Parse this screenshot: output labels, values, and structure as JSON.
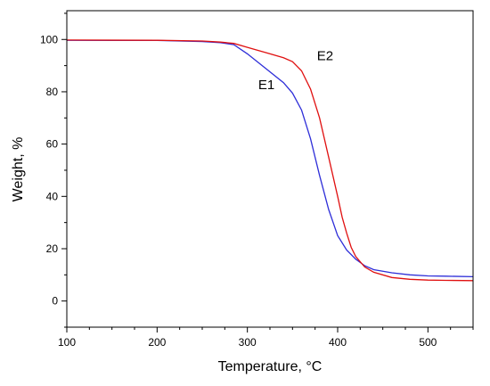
{
  "chart_data": {
    "type": "line",
    "xlabel": "Temperature, °C",
    "ylabel": "Weight, %",
    "xlim": [
      100,
      550
    ],
    "ylim": [
      -10,
      111
    ],
    "xticks": [
      100,
      200,
      300,
      400,
      500
    ],
    "yticks": [
      0,
      20,
      40,
      60,
      80,
      100
    ],
    "x_minor_step": 25,
    "y_minor_step": 10,
    "grid": false,
    "legend": "none",
    "series": [
      {
        "name": "E1",
        "color": "#2e2ed8",
        "x": [
          100,
          200,
          250,
          270,
          285,
          300,
          320,
          340,
          350,
          360,
          370,
          380,
          390,
          400,
          410,
          420,
          430,
          440,
          460,
          480,
          500,
          520,
          550
        ],
        "y": [
          99.7,
          99.6,
          99.2,
          98.8,
          98.0,
          94.5,
          89.0,
          83.5,
          79.5,
          73.0,
          62.0,
          48.0,
          35.0,
          25.0,
          19.5,
          16.0,
          13.5,
          12.0,
          10.8,
          10.0,
          9.6,
          9.5,
          9.3
        ]
      },
      {
        "name": "E2",
        "color": "#e01010",
        "x": [
          100,
          200,
          250,
          270,
          285,
          300,
          320,
          340,
          350,
          360,
          370,
          380,
          390,
          400,
          405,
          410,
          415,
          420,
          430,
          440,
          460,
          480,
          500,
          520,
          550
        ],
        "y": [
          99.8,
          99.7,
          99.4,
          99.0,
          98.5,
          97.0,
          95.0,
          93.0,
          91.5,
          88.0,
          81.0,
          70.0,
          55.0,
          40.0,
          32.0,
          26.0,
          20.5,
          17.0,
          13.0,
          11.0,
          9.0,
          8.3,
          8.0,
          7.9,
          7.8
        ]
      }
    ],
    "annotations": [
      {
        "text": "E1",
        "x": 312,
        "y": 81
      },
      {
        "text": "E2",
        "x": 377,
        "y": 92
      }
    ]
  }
}
